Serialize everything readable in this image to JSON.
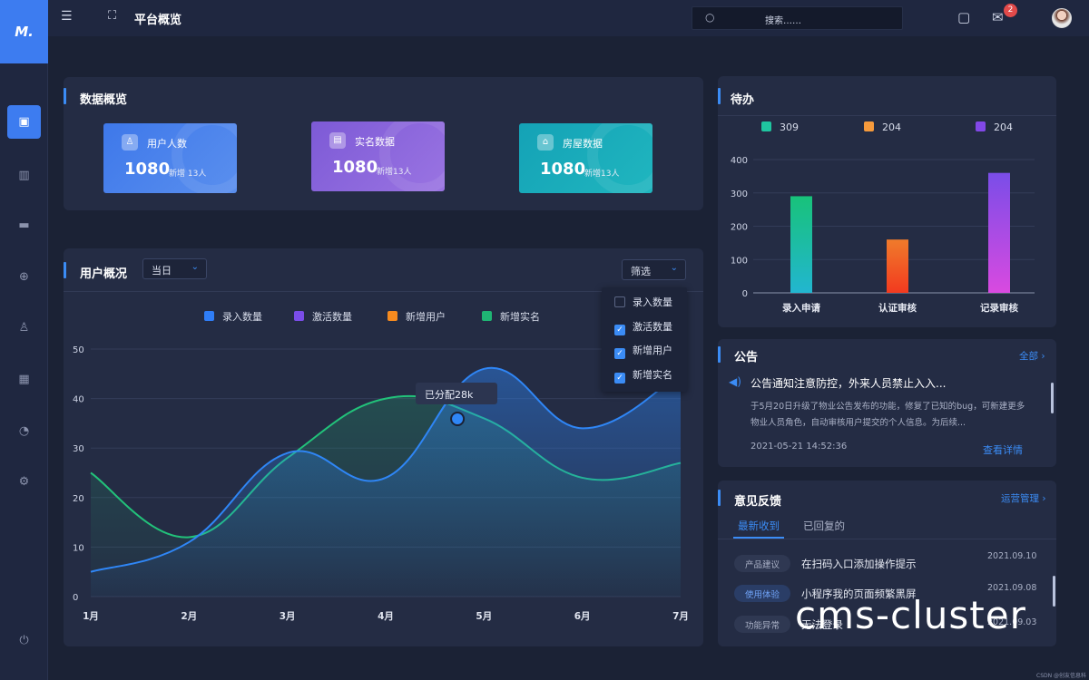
{
  "topbar": {
    "page_title": "平台概览",
    "search_placeholder": "搜索……",
    "mail_badge": "2"
  },
  "sidebar": {
    "items": [
      "home-icon",
      "building-icon",
      "folder-icon",
      "target-icon",
      "user-icon",
      "calendar-icon",
      "pie-icon",
      "settings-icon",
      "power-icon"
    ]
  },
  "overview": {
    "title": "数据概览",
    "cards": [
      {
        "label": "用户人数",
        "value": "1080",
        "sub": "新增 13人",
        "color": "#4a7fe8"
      },
      {
        "label": "实名数据",
        "value": "1080",
        "sub": "新增13人",
        "color": "#8a66d6"
      },
      {
        "label": "房屋数据",
        "value": "1080",
        "sub": "新增13人",
        "color": "#1aa9b8"
      }
    ]
  },
  "user_panel": {
    "title": "用户概况",
    "period": "当日",
    "filter": "筛选",
    "filter_options": [
      {
        "label": "录入数量",
        "checked": false
      },
      {
        "label": "激活数量",
        "checked": true
      },
      {
        "label": "新增用户",
        "checked": true
      },
      {
        "label": "新增实名",
        "checked": true
      }
    ],
    "tooltip": "已分配28k"
  },
  "chart_data": [
    {
      "type": "line",
      "x": [
        "1月",
        "2月",
        "3月",
        "4月",
        "5月",
        "6月",
        "7月"
      ],
      "ylim": [
        0,
        50
      ],
      "yticks": [
        0,
        10,
        20,
        30,
        40,
        50
      ],
      "legend": [
        "录入数量",
        "激活数量",
        "新增用户",
        "新增实名"
      ],
      "legend_colors": [
        "#2f7df6",
        "#7a4de8",
        "#f58a1f",
        "#1fb574"
      ],
      "series": [
        {
          "name": "录入数量",
          "color": "#2f86f6",
          "values": [
            5,
            11,
            29,
            24,
            46,
            34,
            45
          ]
        },
        {
          "name": "新增实名",
          "color": "#22c27a",
          "values": [
            25,
            12,
            28,
            40,
            36,
            24,
            27
          ]
        }
      ]
    },
    {
      "type": "bar",
      "legend": [
        "309",
        "204",
        "204"
      ],
      "legend_colors": [
        "#1fc6a0",
        "#f59a3c",
        "#8248e8"
      ],
      "categories": [
        "录入申请",
        "认证审核",
        "记录审核"
      ],
      "values": [
        290,
        160,
        360
      ],
      "ylim": [
        0,
        400
      ],
      "yticks": [
        0,
        100,
        200,
        300,
        400
      ]
    }
  ],
  "todo": {
    "title": "待办"
  },
  "notice": {
    "title": "公告",
    "all": "全部",
    "headline": "公告通知注意防控，外来人员禁止入入...",
    "body": "于5月20日升级了物业公告发布的功能，修复了已知的bug，可新建更多物业人员角色，自动审核用户提交的个人信息。为后续...",
    "time": "2021-05-21 14:52:36",
    "detail": "查看详情"
  },
  "feedback": {
    "title": "意见反馈",
    "manage": "运营管理",
    "tabs": [
      "最新收到",
      "已回复的"
    ],
    "items": [
      {
        "tag": "产品建议",
        "text": "在扫码入口添加操作提示",
        "date": "2021.09.10"
      },
      {
        "tag": "使用体验",
        "text": "小程序我的页面频繁黑屏",
        "date": "2021.09.08"
      },
      {
        "tag": "功能异常",
        "text": "无法登录",
        "date": "2021.09.03"
      }
    ]
  },
  "overlay": {
    "brand": "cms-cluster",
    "credit": "CSDN @创友信息科技"
  }
}
